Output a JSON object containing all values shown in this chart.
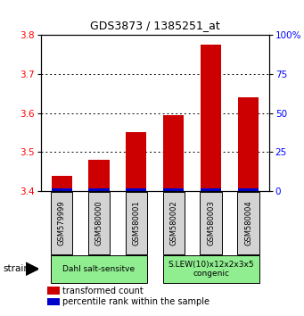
{
  "title": "GDS3873 / 1385251_at",
  "samples": [
    "GSM579999",
    "GSM580000",
    "GSM580001",
    "GSM580002",
    "GSM580003",
    "GSM580004"
  ],
  "red_values": [
    3.44,
    3.48,
    3.55,
    3.595,
    3.775,
    3.64
  ],
  "ylim_left": [
    3.4,
    3.8
  ],
  "ylim_right": [
    0,
    100
  ],
  "yticks_left": [
    3.4,
    3.5,
    3.6,
    3.7,
    3.8
  ],
  "yticks_right": [
    0,
    25,
    50,
    75,
    100
  ],
  "ytick_labels_right": [
    "0",
    "25",
    "50",
    "75",
    "100%"
  ],
  "groups": [
    {
      "label": "Dahl salt-sensitve",
      "start": 0,
      "end": 3,
      "color": "#90EE90"
    },
    {
      "label": "S.LEW(10)x12x2x3x5\ncongenic",
      "start": 3,
      "end": 6,
      "color": "#90EE90"
    }
  ],
  "strain_label": "strain",
  "legend_red": "transformed count",
  "legend_blue": "percentile rank within the sample",
  "bar_width": 0.55,
  "red_color": "#CC0000",
  "blue_color": "#0000CC",
  "sample_bg": "#D3D3D3",
  "title_fontsize": 9
}
